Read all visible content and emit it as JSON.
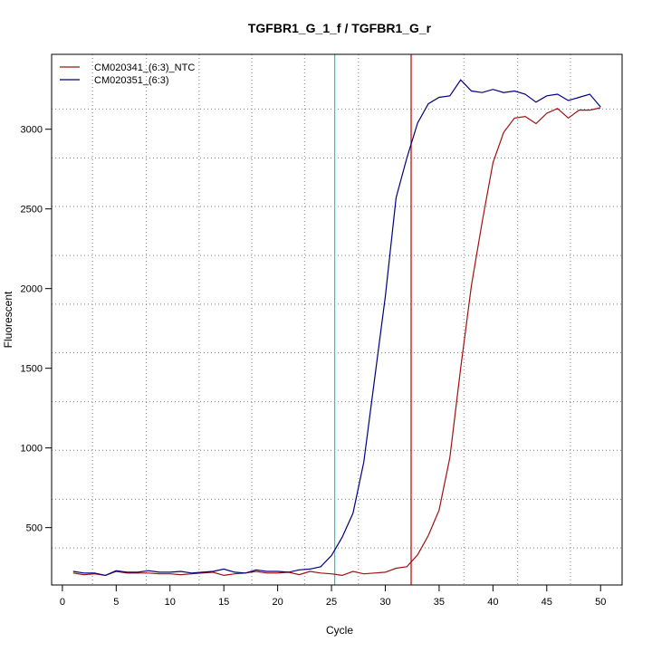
{
  "chart_data": {
    "type": "line",
    "title": "TGFBR1_G_1_f / TGFBR1_G_r",
    "xlabel": "Cycle",
    "ylabel": "Fluorescent",
    "xlim": [
      -1.0,
      52.0
    ],
    "ylim": [
      140,
      3470
    ],
    "xticks": [
      0,
      5,
      10,
      15,
      20,
      25,
      30,
      35,
      40,
      45,
      50
    ],
    "yticks": [
      500,
      1000,
      1500,
      2000,
      2500,
      3000
    ],
    "x_grid_dotted": [
      2.8,
      7.8,
      12.7,
      17.6,
      22.5,
      27.5,
      32.4,
      37.3,
      42.3,
      47.2
    ],
    "y_grid_dotted": [
      372,
      678,
      985,
      1290,
      1597,
      1902,
      2208,
      2515,
      2820,
      3127
    ],
    "threshold_vlines": [
      {
        "x": 25.3,
        "color": "#00d2e0"
      },
      {
        "x": 32.4,
        "color": "#c00000"
      }
    ],
    "legend_position": "top-left",
    "series": [
      {
        "name": "CM020341_(6:3)_NTC",
        "color": "#a01010",
        "x": [
          1,
          2,
          3,
          4,
          5,
          6,
          7,
          8,
          9,
          10,
          11,
          12,
          13,
          14,
          15,
          16,
          17,
          18,
          19,
          20,
          21,
          22,
          23,
          24,
          25,
          26,
          27,
          28,
          29,
          30,
          31,
          32,
          33,
          34,
          35,
          36,
          37,
          38,
          39,
          40,
          41,
          42,
          43,
          44,
          45,
          46,
          47,
          48,
          49,
          50
        ],
        "values": [
          215,
          205,
          210,
          200,
          225,
          215,
          215,
          215,
          210,
          210,
          205,
          210,
          215,
          220,
          200,
          210,
          215,
          225,
          215,
          215,
          220,
          205,
          225,
          215,
          210,
          200,
          225,
          210,
          215,
          220,
          245,
          255,
          330,
          450,
          610,
          940,
          1500,
          2020,
          2420,
          2790,
          2980,
          3070,
          3080,
          3035,
          3100,
          3130,
          3070,
          3120,
          3120,
          3135
        ]
      },
      {
        "name": "CM020351_(6:3)",
        "color": "#000080",
        "x": [
          1,
          2,
          3,
          4,
          5,
          6,
          7,
          8,
          9,
          10,
          11,
          12,
          13,
          14,
          15,
          16,
          17,
          18,
          19,
          20,
          21,
          22,
          23,
          24,
          25,
          26,
          27,
          28,
          29,
          30,
          31,
          32,
          33,
          34,
          35,
          36,
          37,
          38,
          39,
          40,
          41,
          42,
          43,
          44,
          45,
          46,
          47,
          48,
          49,
          50
        ],
        "values": [
          225,
          215,
          215,
          200,
          230,
          220,
          220,
          230,
          220,
          220,
          225,
          215,
          220,
          225,
          240,
          220,
          215,
          235,
          225,
          225,
          220,
          235,
          240,
          255,
          325,
          440,
          590,
          910,
          1430,
          1950,
          2570,
          2820,
          3040,
          3160,
          3200,
          3210,
          3310,
          3240,
          3230,
          3250,
          3230,
          3240,
          3220,
          3170,
          3210,
          3220,
          3180,
          3200,
          3220,
          3140
        ]
      }
    ]
  }
}
